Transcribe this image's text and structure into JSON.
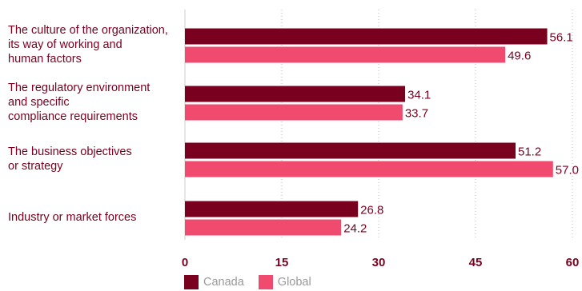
{
  "chart_data": {
    "type": "bar",
    "orientation": "horizontal",
    "categories": [
      "The culture of the organization, its way of working and human factors",
      "The regulatory environment and specific compliance requirements",
      "The business objectives or strategy",
      "Industry or market forces"
    ],
    "category_lines": [
      [
        "The culture of the organization,",
        "its way of working and",
        "human factors"
      ],
      [
        "The regulatory environment",
        "and specific",
        "compliance requirements"
      ],
      [
        "The business objectives",
        "or strategy"
      ],
      [
        "Industry or market forces"
      ]
    ],
    "series": [
      {
        "name": "Canada",
        "color": "#7a0020",
        "values": [
          56.1,
          34.1,
          51.2,
          26.8
        ],
        "labels": [
          "56.1",
          "34.1",
          "51.2",
          "26.8"
        ]
      },
      {
        "name": "Global",
        "color": "#f04a6e",
        "values": [
          49.6,
          33.7,
          57.0,
          24.2
        ],
        "labels": [
          "49.6",
          "33.7",
          "57.0",
          "24.2"
        ]
      }
    ],
    "xlim": [
      0,
      60
    ],
    "xticks": [
      "0",
      "15",
      "30",
      "45",
      "60"
    ],
    "grid": "vertical dotted",
    "legend_position": "bottom",
    "colors": {
      "label_text": "#7a0020",
      "tick_text": "#7a0020",
      "legend_text": "#999999",
      "grid": "#bbbbbb",
      "axis": "#cccccc"
    }
  }
}
